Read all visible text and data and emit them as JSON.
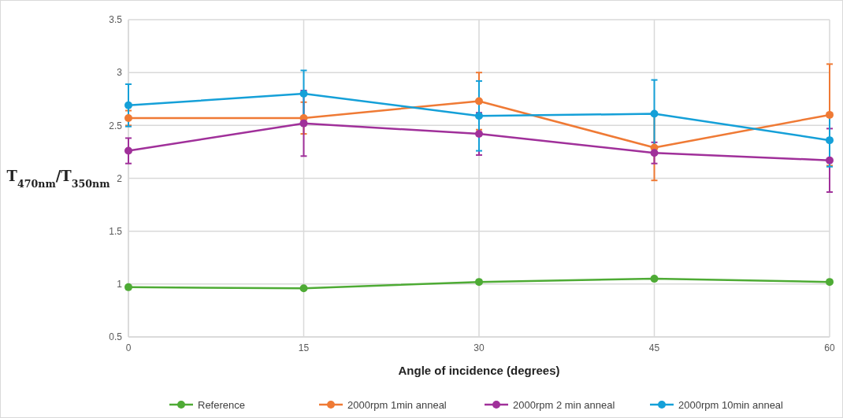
{
  "chart_data": {
    "type": "line",
    "xlabel": "Angle of incidence (degrees)",
    "ylabel": "T$_{470nm}$/T$_{350nm}$",
    "x": [
      0,
      15,
      30,
      45,
      60
    ],
    "xlim": [
      0,
      60
    ],
    "xticks": [
      0,
      15,
      30,
      45,
      60
    ],
    "ylim": [
      0.5,
      3.5
    ],
    "yticks": [
      0.5,
      1,
      1.5,
      2,
      2.5,
      3,
      3.5
    ],
    "grid": true,
    "legend": "bottom",
    "marker": "circle",
    "series": [
      {
        "name": "Reference",
        "color": "#4eab35",
        "values": [
          0.97,
          0.96,
          1.02,
          1.05,
          1.02
        ]
      },
      {
        "name": "2000rpm 1min anneal",
        "color": "#ef7a35",
        "values": [
          2.57,
          2.57,
          2.73,
          2.29,
          2.6
        ],
        "errors": [
          0.07,
          0.15,
          0.27,
          0.31,
          0.48
        ]
      },
      {
        "name": "2000rpm 2 min anneal",
        "color": "#a0309a",
        "values": [
          2.26,
          2.52,
          2.42,
          2.24,
          2.17
        ],
        "errors": [
          0.12,
          0.31,
          0.2,
          0.1,
          0.3
        ]
      },
      {
        "name": "2000rpm 10min anneal",
        "color": "#15a0d8",
        "values": [
          2.69,
          2.8,
          2.59,
          2.61,
          2.36
        ],
        "errors": [
          0.2,
          0.22,
          0.33,
          0.32,
          0.25
        ]
      }
    ]
  }
}
